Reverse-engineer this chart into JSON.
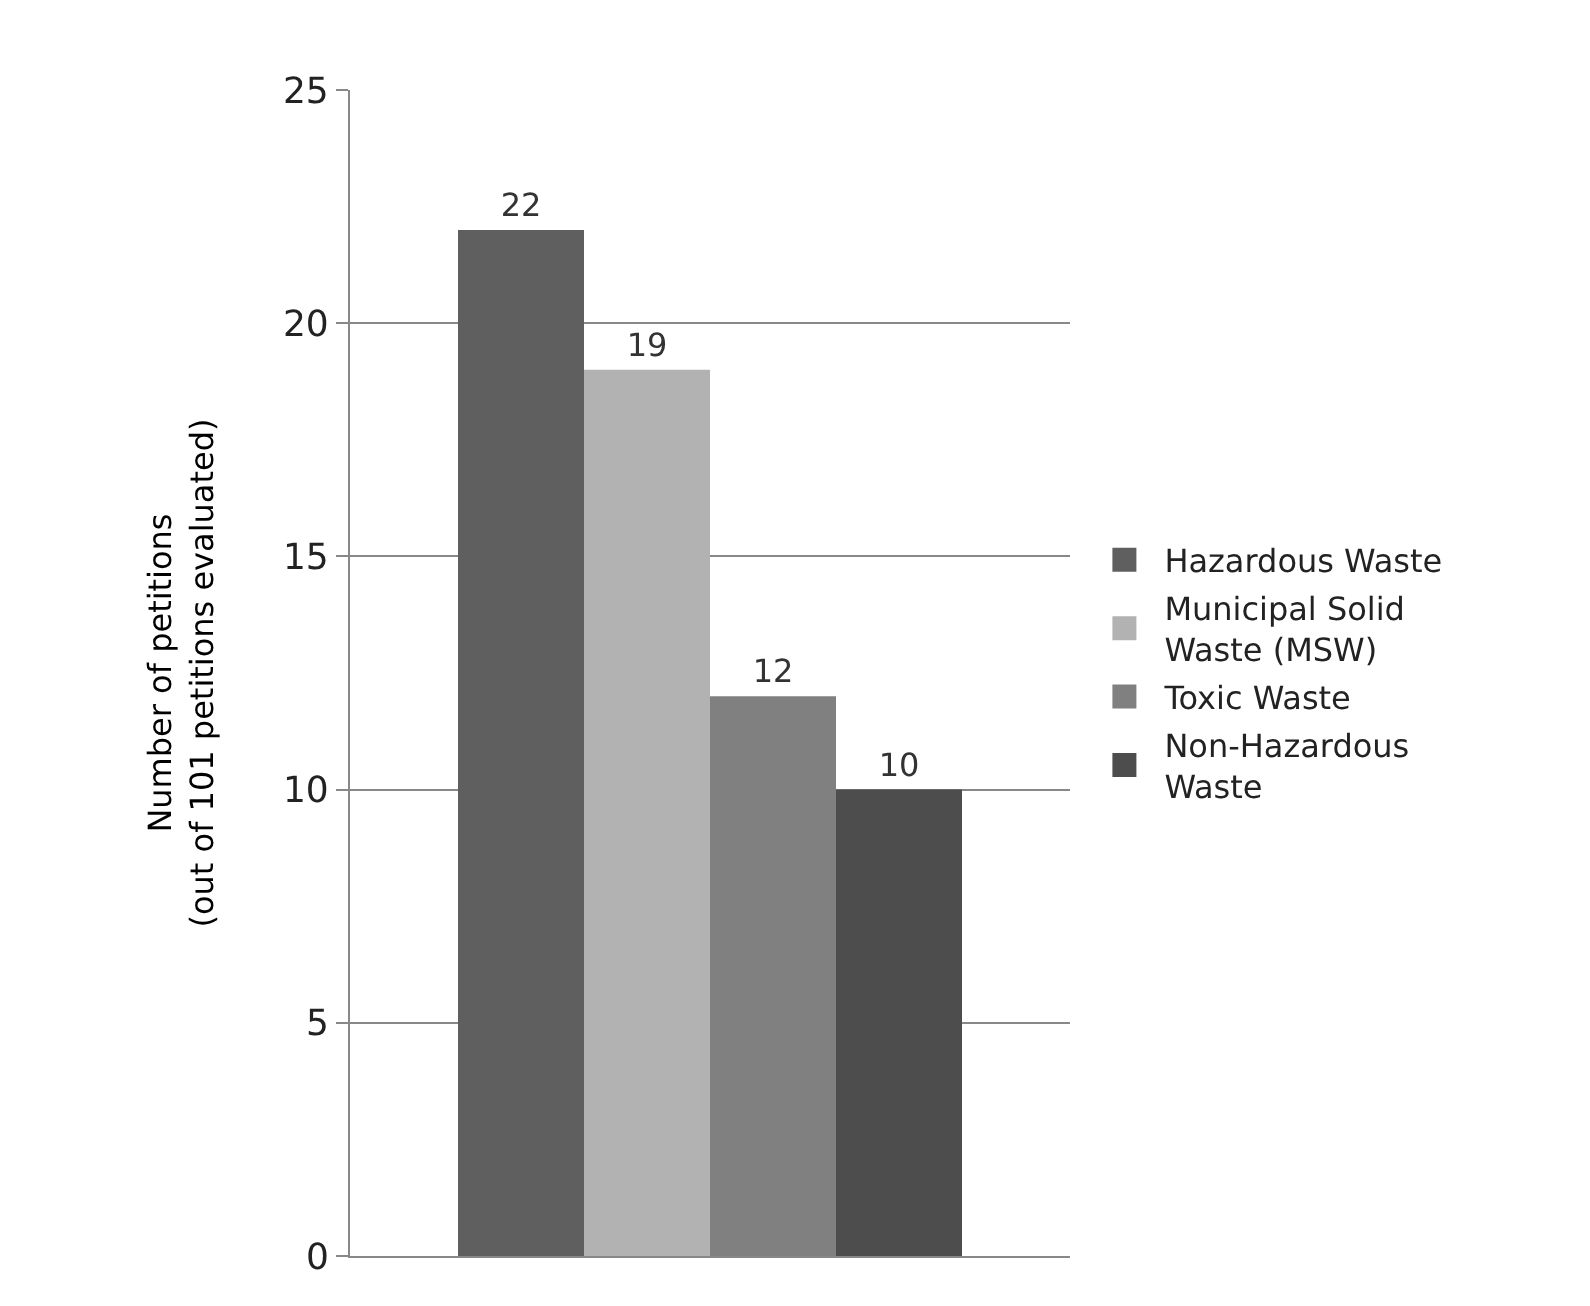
{
  "chart_data": {
    "type": "bar",
    "ylabel": "Number of petitions\n(out of 101 petitions evaluated)",
    "categories": [
      null
    ],
    "series": [
      {
        "name": "Hazardous Waste",
        "color": "#5f5f5f",
        "values": [
          22
        ]
      },
      {
        "name": "Municipal Solid Waste (MSW)",
        "color": "#b2b2b2",
        "values": [
          19
        ]
      },
      {
        "name": "Toxic Waste",
        "color": "#808080",
        "values": [
          12
        ]
      },
      {
        "name": "Non-Hazardous Waste",
        "color": "#4d4d4d",
        "values": [
          10
        ]
      }
    ],
    "ylim": [
      0,
      25
    ],
    "yticks": [
      0,
      5,
      10,
      15,
      20,
      25
    ],
    "grid": "y",
    "legend": "right",
    "data_labels": true,
    "tick_labels": "y"
  }
}
